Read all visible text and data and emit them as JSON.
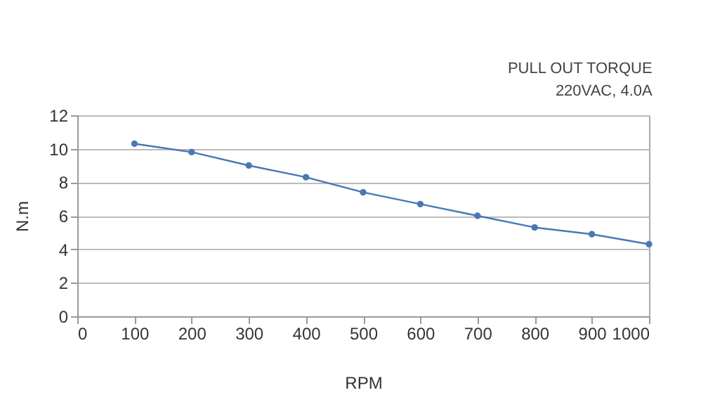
{
  "chart_data": {
    "type": "line",
    "annotations": [
      "PULL OUT TORQUE",
      "220VAC,  4.0A"
    ],
    "xlabel": "RPM",
    "ylabel": "N.m",
    "x": [
      100,
      200,
      300,
      400,
      500,
      600,
      700,
      800,
      900,
      1000
    ],
    "series": [
      {
        "color": "#4a78b5",
        "values": [
          10.3,
          9.8,
          9.0,
          8.3,
          7.4,
          6.7,
          6.0,
          5.3,
          4.9,
          4.3
        ]
      }
    ],
    "xlim": [
      0,
      1000
    ],
    "xticks": [
      0,
      100,
      200,
      300,
      400,
      500,
      600,
      700,
      800,
      900,
      1000
    ],
    "ylim": [
      0,
      12
    ],
    "yticks": [
      0,
      2,
      4,
      6,
      8,
      10,
      12
    ],
    "grid": "y",
    "marker": "circle",
    "line_style": "solid",
    "legend": false
  }
}
